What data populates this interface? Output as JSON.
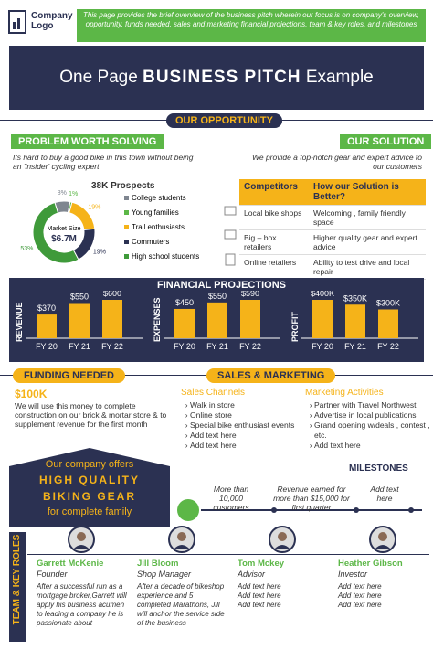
{
  "header": {
    "logo": "Company Logo",
    "intro": "This page provides the brief overview of the business pitch wherein our focus is on company's overview,  opportunity, funds needed, sales and marketing  financial projections, team & key roles, and milestones"
  },
  "title": {
    "lead": "One Page",
    "main": "BUSINESS PITCH",
    "tail": "Example"
  },
  "opportunity": {
    "heading": "OUR OPPORTUNITY"
  },
  "problem": {
    "heading": "PROBLEM WORTH SOLVING",
    "text": "Its hard to buy a good bike in this town without being an 'insider' cycling expert"
  },
  "solution": {
    "heading": "OUR SOLUTION",
    "text": "We provide  a top-notch gear and expert advice to our customers"
  },
  "prospects": {
    "title": "38K Prospects",
    "chart": {
      "type": "pie",
      "center_label": "Market Size",
      "center_value": "$6.7M",
      "categories": [
        "College students",
        "Young families",
        "Trail enthusiasts",
        "Commuters",
        "High school students"
      ],
      "values": [
        8,
        1,
        19,
        19,
        53
      ],
      "value_labels": [
        "8%",
        "1%",
        "19%",
        "19%",
        "53%"
      ],
      "colors": [
        "#7f8690",
        "#5cb747",
        "#f5b319",
        "#2b3152",
        "#3f9a3a"
      ]
    }
  },
  "competitors": {
    "columns": [
      "Competitors",
      "How our Solution is Better?"
    ],
    "rows": [
      [
        "Local bike shops",
        "Welcoming , family friendly space"
      ],
      [
        "Big – box retailers",
        "Higher quality gear and expert advice"
      ],
      [
        "Online retailers",
        "Ability to test drive and local repair"
      ]
    ]
  },
  "financials": {
    "heading": "FINANCIAL PROJECTIONS",
    "charts": [
      {
        "type": "bar",
        "label": "REVENUE",
        "categories": [
          "FY 20",
          "FY 21",
          "FY 22"
        ],
        "values": [
          370,
          550,
          600
        ],
        "value_labels": [
          "$370",
          "$550",
          "$600"
        ],
        "color": "#f5b319"
      },
      {
        "type": "bar",
        "label": "EXPENSES",
        "categories": [
          "FY 20",
          "FY 21",
          "FY 22"
        ],
        "values": [
          450,
          550,
          590
        ],
        "value_labels": [
          "$450",
          "$550",
          "$590"
        ],
        "color": "#f5b319"
      },
      {
        "type": "bar",
        "label": "PROFIT",
        "categories": [
          "FY 20",
          "FY 21",
          "FY 22"
        ],
        "values": [
          400,
          350,
          300
        ],
        "value_labels": [
          "$400K",
          "$350K",
          "$300K"
        ],
        "color": "#f5b319"
      }
    ]
  },
  "funding": {
    "heading": "FUNDING NEEDED",
    "amount": "$100K",
    "text": "We will use this money to complete construction on our brick & mortar store & to supplement revenue for the first month"
  },
  "sales": {
    "heading": "SALES & MARKETING",
    "channels": {
      "title": "Sales Channels",
      "items": [
        "Walk in store",
        "Online store",
        "Special bike enthusiast events",
        "Add text here",
        "Add text here"
      ]
    },
    "activities": {
      "title": "Marketing Activities",
      "items": [
        "Partner with Travel  Northwest",
        "Advertise in local publications",
        "Grand opening w/deals ,  contest , etc.",
        "Add text here"
      ]
    }
  },
  "offer": {
    "lines": [
      "Our company offers",
      "HIGH QUALITY",
      "BIKING GEAR",
      "for complete family"
    ]
  },
  "milestones": {
    "heading": "MILESTONES",
    "items": [
      "More than 10,000 customers",
      "Revenue earned for more than $15,000 for first quarter",
      "Add text here"
    ]
  },
  "team": {
    "heading": "TEAM & KEY ROLES",
    "members": [
      {
        "name": "Garrett McKenie",
        "role": "Founder",
        "text": "After a successful run as a mortgage broker,Garrett will apply his business acumen to leading a company he is passionate about"
      },
      {
        "name": "Jill Bloom",
        "role": "Shop Manager",
        "text": "After a decade of bikeshop experience and 5 completed Marathons, Jill will anchor the service side of the business"
      },
      {
        "name": "Tom Mckey",
        "role": "Advisor",
        "text": "Add text here Add text here Add text here"
      },
      {
        "name": "Heather Gibson",
        "role": "Investor",
        "text": "Add text here Add text here Add text here"
      }
    ]
  }
}
